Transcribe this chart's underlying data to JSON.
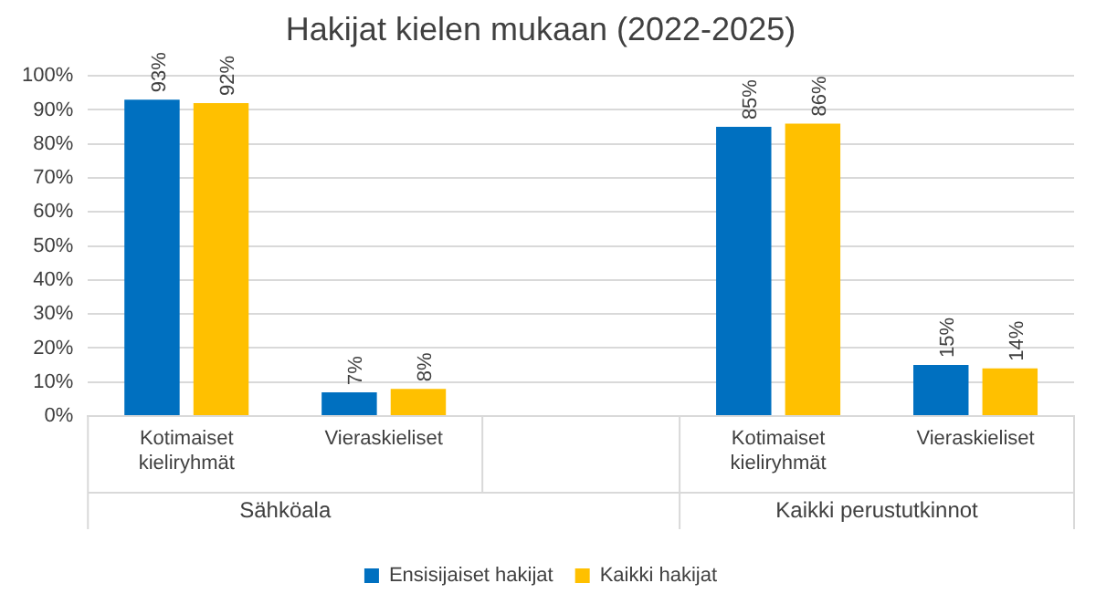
{
  "chart_data": {
    "type": "bar",
    "title": "Hakijat kielen mukaan (2022-2025)",
    "categories": [
      "Kotimaiset kieliryhmät",
      "Vieraskieliset",
      null,
      "Kotimaiset kieliryhmät",
      "Vieraskieliset"
    ],
    "series": [
      {
        "name": "Ensisijaiset hakijat",
        "color": "#0070c0",
        "values": [
          93,
          7,
          null,
          85,
          15
        ],
        "value_labels": [
          "93%",
          "7%",
          null,
          "85%",
          "15%"
        ]
      },
      {
        "name": "Kaikki hakijat",
        "color": "#ffc000",
        "values": [
          92,
          8,
          null,
          86,
          14
        ],
        "value_labels": [
          "92%",
          "8%",
          null,
          "86%",
          "14%"
        ]
      }
    ],
    "ylim": [
      0,
      100
    ],
    "yticks": [
      {
        "value": 0,
        "label": "0%"
      },
      {
        "value": 10,
        "label": "10%"
      },
      {
        "value": 20,
        "label": "20%"
      },
      {
        "value": 30,
        "label": "30%"
      },
      {
        "value": 40,
        "label": "40%"
      },
      {
        "value": 50,
        "label": "50%"
      },
      {
        "value": 60,
        "label": "60%"
      },
      {
        "value": 70,
        "label": "70%"
      },
      {
        "value": 80,
        "label": "80%"
      },
      {
        "value": 90,
        "label": "90%"
      },
      {
        "value": 100,
        "label": "100%"
      }
    ],
    "annotations": [
      "Sähköala",
      "Kaikki perustutkinnot"
    ],
    "grid": "y",
    "legend": "bottom"
  }
}
